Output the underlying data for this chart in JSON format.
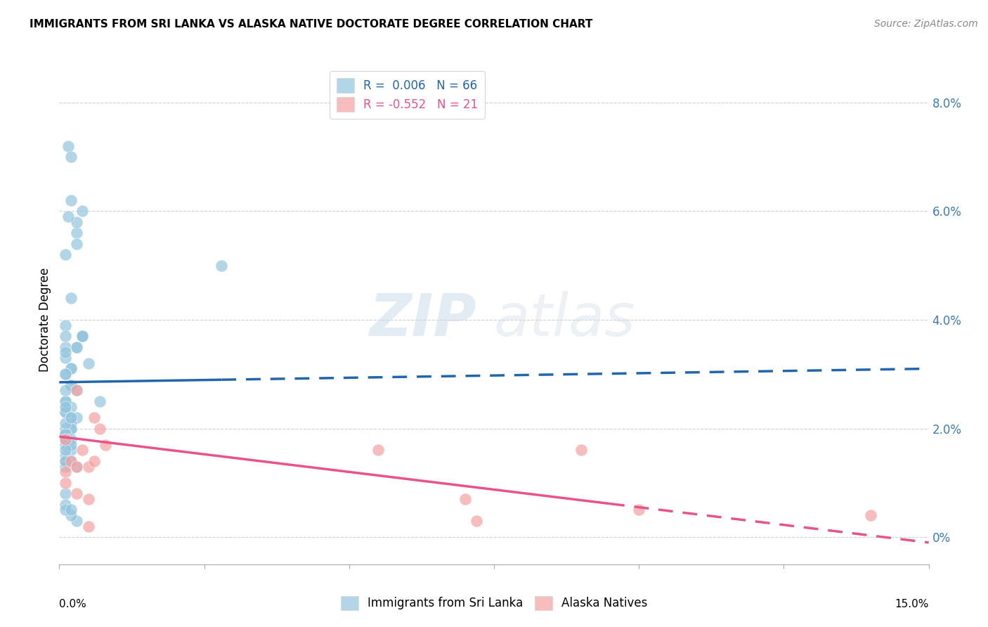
{
  "title": "IMMIGRANTS FROM SRI LANKA VS ALASKA NATIVE DOCTORATE DEGREE CORRELATION CHART",
  "source": "Source: ZipAtlas.com",
  "ylabel": "Doctorate Degree",
  "right_ytick_labels": [
    "0%",
    "2.0%",
    "4.0%",
    "6.0%",
    "8.0%"
  ],
  "right_ytick_vals": [
    0.0,
    2.0,
    4.0,
    6.0,
    8.0
  ],
  "xlim": [
    0.0,
    15.0
  ],
  "ylim": [
    -0.5,
    8.5
  ],
  "blue_R": "0.006",
  "blue_N": "66",
  "pink_R": "-0.552",
  "pink_N": "21",
  "blue_color": "#92c5de",
  "pink_color": "#f4a0a0",
  "blue_trend_color": "#2166ac",
  "pink_trend_color": "#e8538a",
  "watermark_zip": "ZIP",
  "watermark_atlas": "atlas",
  "legend_label_blue": "Immigrants from Sri Lanka",
  "legend_label_pink": "Alaska Natives",
  "blue_scatter_x": [
    0.5,
    0.7,
    0.2,
    0.3,
    0.15,
    0.2,
    0.4,
    0.3,
    0.1,
    0.2,
    0.15,
    0.3,
    0.4,
    0.2,
    0.1,
    0.1,
    0.3,
    0.2,
    0.2,
    0.1,
    0.1,
    0.2,
    0.3,
    0.4,
    0.2,
    0.1,
    0.1,
    0.2,
    0.1,
    0.2,
    0.1,
    0.2,
    0.3,
    0.2,
    0.1,
    0.3,
    0.1,
    0.1,
    0.2,
    0.3,
    0.2,
    0.1,
    0.1,
    0.2,
    0.1,
    0.1,
    0.2,
    0.1,
    0.3,
    0.2,
    0.1,
    0.1,
    0.1,
    0.2,
    0.1,
    0.1,
    0.1,
    0.1,
    0.1,
    0.1,
    0.1,
    0.4,
    0.1,
    2.8,
    0.1,
    0.2
  ],
  "blue_scatter_y": [
    3.2,
    2.5,
    6.2,
    5.6,
    7.2,
    7.0,
    6.0,
    5.8,
    3.3,
    3.1,
    5.9,
    5.4,
    3.7,
    4.4,
    3.5,
    3.4,
    3.5,
    3.1,
    2.8,
    2.5,
    2.3,
    2.4,
    3.5,
    3.7,
    2.0,
    2.0,
    1.8,
    1.6,
    1.5,
    1.4,
    2.3,
    2.2,
    2.2,
    2.1,
    1.4,
    1.3,
    1.3,
    1.4,
    2.8,
    2.7,
    2.0,
    1.9,
    1.9,
    1.8,
    1.8,
    1.7,
    1.7,
    1.6,
    0.3,
    0.4,
    0.8,
    0.6,
    0.5,
    0.5,
    2.5,
    2.4,
    3.9,
    3.7,
    3.0,
    3.0,
    5.2,
    3.7,
    2.7,
    5.0,
    2.1,
    2.2
  ],
  "pink_scatter_x": [
    0.1,
    0.3,
    0.1,
    0.2,
    0.4,
    0.3,
    0.5,
    0.6,
    0.7,
    0.1,
    0.8,
    0.6,
    0.3,
    5.5,
    7.0,
    7.2,
    0.5,
    9.0,
    14.0,
    10.0,
    0.5
  ],
  "pink_scatter_y": [
    1.8,
    2.7,
    1.2,
    1.4,
    1.6,
    1.3,
    1.3,
    1.4,
    2.0,
    1.0,
    1.7,
    2.2,
    0.8,
    1.6,
    0.7,
    0.3,
    0.2,
    1.6,
    0.4,
    0.5,
    0.7
  ],
  "blue_trend_x0": 0.0,
  "blue_trend_x1": 15.0,
  "blue_trend_y0": 2.85,
  "blue_trend_y1": 3.1,
  "blue_solid_end": 2.8,
  "pink_trend_x0": 0.0,
  "pink_trend_x1": 15.0,
  "pink_trend_y0": 1.85,
  "pink_trend_y1": -0.1,
  "pink_solid_end": 9.5,
  "xtick_vals": [
    0.0,
    2.5,
    5.0,
    7.5,
    10.0,
    12.5,
    15.0
  ],
  "grid_color": "#d0d0d0",
  "background_color": "#ffffff"
}
